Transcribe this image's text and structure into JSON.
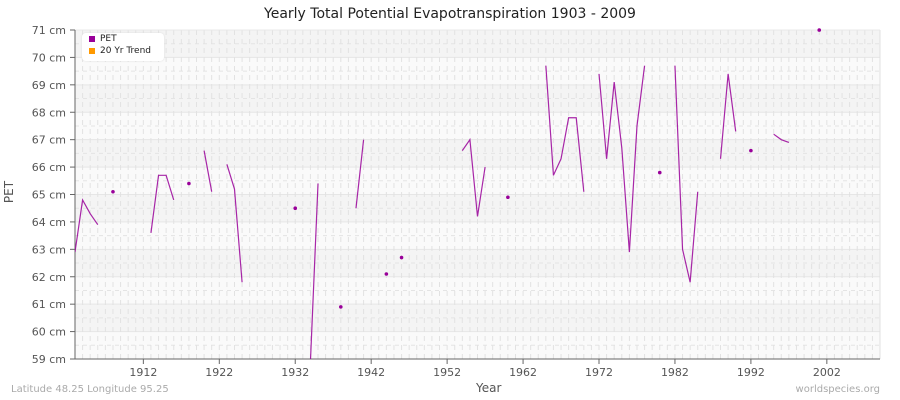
{
  "header": {
    "title": "Yearly Total Potential Evapotranspiration 1903 - 2009"
  },
  "axes": {
    "xlabel": "Year",
    "ylabel": "PET"
  },
  "legend": {
    "items": [
      {
        "label": "PET",
        "color": "#990099"
      },
      {
        "label": "20 Yr Trend",
        "color": "#ff9900"
      }
    ]
  },
  "footer": {
    "location": "Latitude 48.25 Longitude 95.25",
    "source": "worldspecies.org"
  },
  "chart_data": {
    "type": "line",
    "title": "Yearly Total Potential Evapotranspiration 1903 - 2009",
    "xlabel": "Year",
    "ylabel": "PET",
    "xlim": [
      1903,
      2009
    ],
    "ylim": [
      59,
      71
    ],
    "x_ticks": [
      1912,
      1922,
      1932,
      1942,
      1952,
      1962,
      1972,
      1982,
      1992,
      2002
    ],
    "y_ticks": [
      "59 cm",
      "60 cm",
      "61 cm",
      "62 cm",
      "63 cm",
      "64 cm",
      "65 cm",
      "66 cm",
      "67 cm",
      "68 cm",
      "69 cm",
      "70 cm",
      "71 cm"
    ],
    "grid": true,
    "legend_position": "top-left",
    "series": [
      {
        "name": "PET",
        "color": "#990099",
        "segments": [
          [
            [
              1903,
              62.9
            ],
            [
              1904,
              64.8
            ],
            [
              1905,
              64.3
            ],
            [
              1906,
              63.9
            ]
          ],
          [
            [
              1908,
              65.1
            ]
          ],
          [
            [
              1913,
              63.6
            ],
            [
              1914,
              65.7
            ],
            [
              1915,
              65.7
            ],
            [
              1916,
              64.8
            ]
          ],
          [
            [
              1918,
              65.4
            ]
          ],
          [
            [
              1920,
              66.6
            ],
            [
              1921,
              65.1
            ]
          ],
          [
            [
              1923,
              66.1
            ],
            [
              1924,
              65.2
            ],
            [
              1925,
              61.8
            ]
          ],
          [
            [
              1932,
              64.5
            ]
          ],
          [
            [
              1934,
              58.9
            ],
            [
              1935,
              65.4
            ]
          ],
          [
            [
              1938,
              60.9
            ]
          ],
          [
            [
              1940,
              64.5
            ],
            [
              1941,
              67.0
            ]
          ],
          [
            [
              1944,
              62.1
            ]
          ],
          [
            [
              1946,
              62.7
            ]
          ],
          [
            [
              1954,
              66.6
            ],
            [
              1955,
              67.0
            ],
            [
              1956,
              64.2
            ],
            [
              1957,
              66.0
            ]
          ],
          [
            [
              1960,
              64.9
            ]
          ],
          [
            [
              1965,
              69.7
            ],
            [
              1966,
              65.7
            ],
            [
              1967,
              66.3
            ],
            [
              1968,
              67.8
            ],
            [
              1969,
              67.8
            ],
            [
              1970,
              65.1
            ]
          ],
          [
            [
              1972,
              69.4
            ],
            [
              1973,
              66.3
            ],
            [
              1974,
              69.1
            ],
            [
              1975,
              66.7
            ],
            [
              1976,
              62.9
            ],
            [
              1977,
              67.5
            ],
            [
              1978,
              69.7
            ]
          ],
          [
            [
              1980,
              65.8
            ]
          ],
          [
            [
              1982,
              69.7
            ],
            [
              1983,
              63.0
            ],
            [
              1984,
              61.8
            ],
            [
              1985,
              65.1
            ]
          ],
          [
            [
              1988,
              66.3
            ],
            [
              1989,
              69.4
            ],
            [
              1990,
              67.3
            ]
          ],
          [
            [
              1992,
              66.6
            ]
          ],
          [
            [
              1995,
              67.2
            ],
            [
              1996,
              67.0
            ],
            [
              1997,
              66.9
            ]
          ],
          [
            [
              2001,
              71.0
            ]
          ]
        ]
      },
      {
        "name": "20 Yr Trend",
        "color": "#ff9900",
        "segments": []
      }
    ]
  }
}
